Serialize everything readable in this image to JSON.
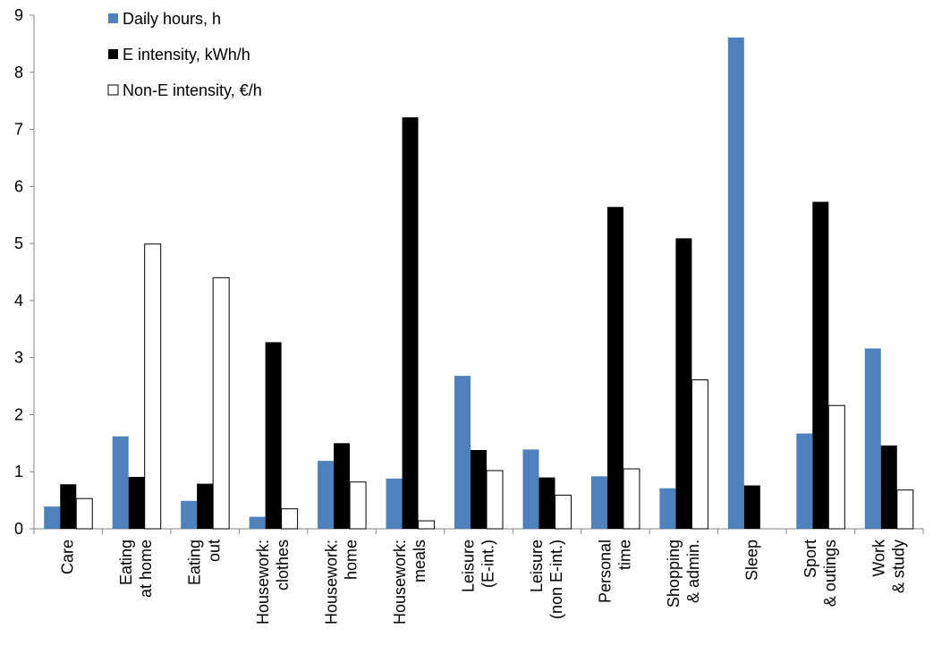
{
  "chart_data": {
    "type": "bar",
    "categories": [
      [
        "Care"
      ],
      [
        "Eating",
        "at home"
      ],
      [
        "Eating",
        "out"
      ],
      [
        "Housework:",
        "clothes"
      ],
      [
        "Housework:",
        "home"
      ],
      [
        "Housework:",
        "meals"
      ],
      [
        "Leisure",
        "(E-int.)"
      ],
      [
        "Leisure",
        "(non E-int.)"
      ],
      [
        "Personal",
        "time"
      ],
      [
        "Shopping",
        "& admin."
      ],
      [
        "Sleep"
      ],
      [
        "Sport",
        "& outings"
      ],
      [
        "Work",
        "& study"
      ]
    ],
    "series": [
      {
        "name": "Daily hours, h",
        "color": "#4F81BD",
        "values": [
          0.39,
          1.62,
          0.49,
          0.21,
          1.19,
          0.88,
          2.68,
          1.39,
          0.92,
          0.71,
          8.61,
          1.67,
          3.16
        ]
      },
      {
        "name": "E intensity, kWh/h",
        "color": "#000000",
        "values": [
          0.78,
          0.91,
          0.79,
          3.27,
          1.5,
          7.21,
          1.38,
          0.9,
          5.64,
          5.09,
          0.76,
          5.73,
          1.46
        ]
      },
      {
        "name": "Non-E intensity, €/h",
        "color": "#FFFFFF",
        "values": [
          0.53,
          4.99,
          4.4,
          0.35,
          0.82,
          0.14,
          1.02,
          0.59,
          1.05,
          2.61,
          0,
          2.16,
          0.68
        ]
      }
    ],
    "ylim": [
      0,
      9
    ],
    "yticks": [
      0,
      1,
      2,
      3,
      4,
      5,
      6,
      7,
      8,
      9
    ],
    "legend_position": "top-left",
    "grid": false,
    "title": "",
    "xlabel": "",
    "ylabel": ""
  }
}
